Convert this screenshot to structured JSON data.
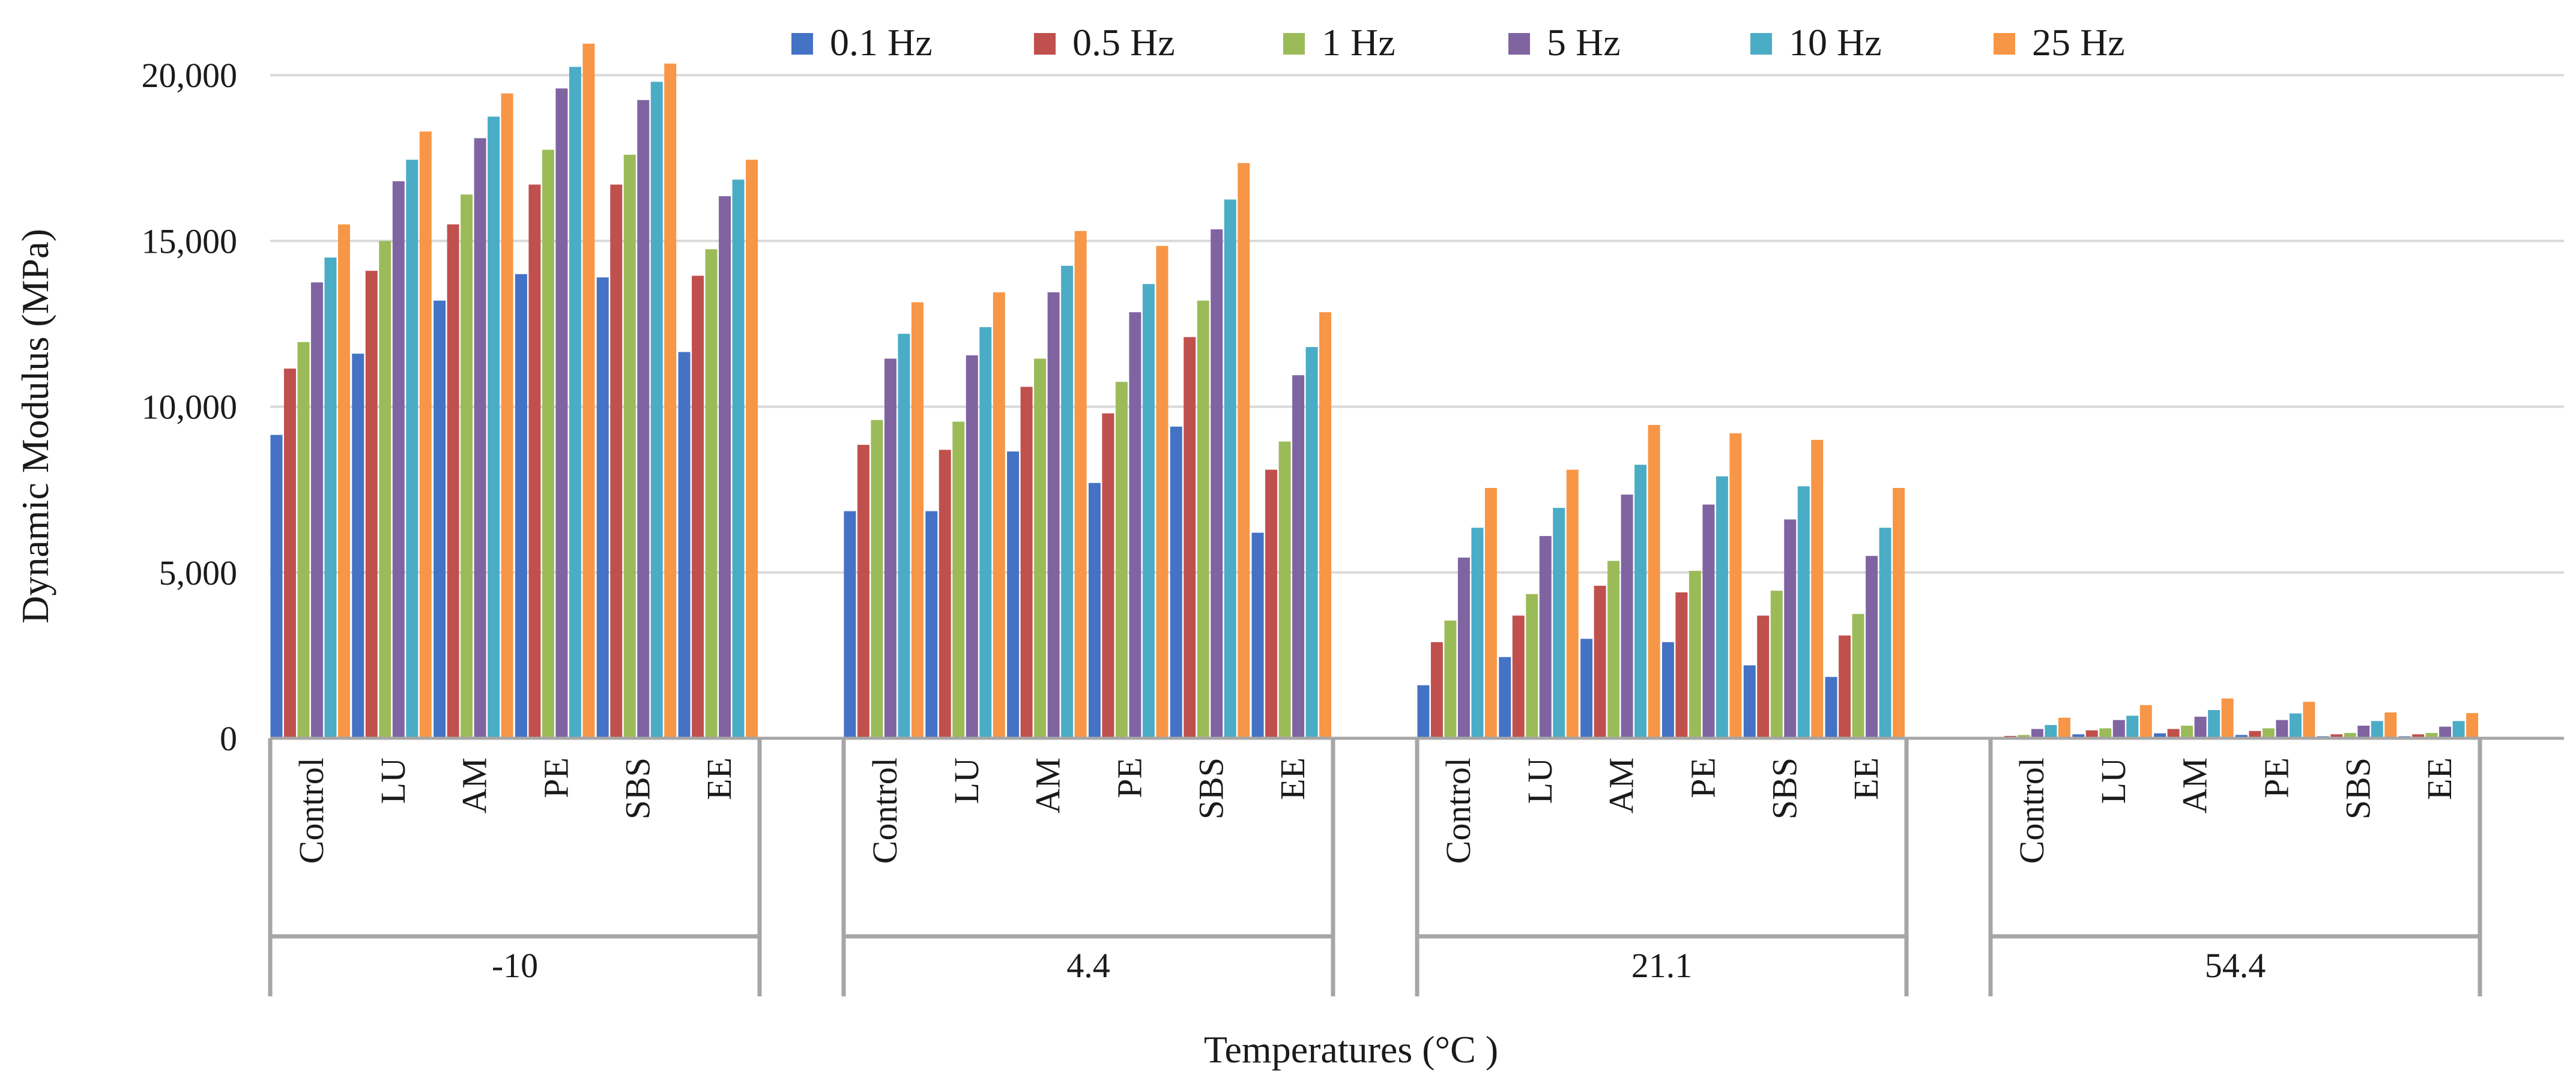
{
  "chart_data": {
    "type": "bar",
    "title": "",
    "xlabel": "Temperatures (°C )",
    "ylabel": "Dynamic Modulus (MPa)",
    "ylim": [
      0,
      21000
    ],
    "yticks": [
      0,
      5000,
      10000,
      15000,
      20000
    ],
    "ytick_labels": [
      "0",
      "5,000",
      "10,000",
      "15,000",
      "20,000"
    ],
    "grid": true,
    "legend_position": "top",
    "groups": [
      "-10",
      "4.4",
      "21.1",
      "54.4"
    ],
    "categories": [
      "Control",
      "LU",
      "AM",
      "PE",
      "SBS",
      "EE"
    ],
    "series": [
      {
        "name": "0.1 Hz",
        "color": "#4472c4",
        "values": [
          [
            9150,
            11600,
            13200,
            14000,
            13900,
            11650
          ],
          [
            6850,
            6850,
            8650,
            7700,
            9400,
            6200
          ],
          [
            1600,
            2450,
            3000,
            2900,
            2200,
            1850
          ],
          [
            30,
            120,
            150,
            100,
            60,
            60
          ]
        ]
      },
      {
        "name": "0.5 Hz",
        "color": "#c0504d",
        "values": [
          [
            11150,
            14100,
            15500,
            16700,
            16700,
            13950
          ],
          [
            8850,
            8700,
            10600,
            9800,
            12100,
            8100
          ],
          [
            2900,
            3700,
            4600,
            4400,
            3700,
            3100
          ],
          [
            70,
            240,
            280,
            220,
            120,
            120
          ]
        ]
      },
      {
        "name": "1 Hz",
        "color": "#9bbb59",
        "values": [
          [
            11950,
            15000,
            16400,
            17750,
            17600,
            14750
          ],
          [
            9600,
            9550,
            11450,
            10750,
            13200,
            8950
          ],
          [
            3550,
            4350,
            5350,
            5050,
            4450,
            3750
          ],
          [
            100,
            300,
            380,
            300,
            160,
            160
          ]
        ]
      },
      {
        "name": "5 Hz",
        "color": "#8064a2",
        "values": [
          [
            13750,
            16800,
            18100,
            19600,
            19250,
            16350
          ],
          [
            11450,
            11550,
            13450,
            12850,
            15350,
            10950
          ],
          [
            5450,
            6100,
            7350,
            7050,
            6600,
            5500
          ],
          [
            280,
            550,
            650,
            550,
            380,
            350
          ]
        ]
      },
      {
        "name": "10 Hz",
        "color": "#4bacc6",
        "values": [
          [
            14500,
            17450,
            18750,
            20250,
            19800,
            16850
          ],
          [
            12200,
            12400,
            14250,
            13700,
            16250,
            11800
          ],
          [
            6350,
            6950,
            8250,
            7900,
            7600,
            6350
          ],
          [
            400,
            680,
            850,
            750,
            520,
            520
          ]
        ]
      },
      {
        "name": "25 Hz",
        "color": "#f79646",
        "values": [
          [
            15500,
            18300,
            19450,
            20950,
            20350,
            17450
          ],
          [
            13150,
            13450,
            15300,
            14850,
            17350,
            12850
          ],
          [
            7550,
            8100,
            9450,
            9200,
            9000,
            7550
          ],
          [
            620,
            1000,
            1200,
            1100,
            780,
            760
          ]
        ]
      }
    ]
  }
}
